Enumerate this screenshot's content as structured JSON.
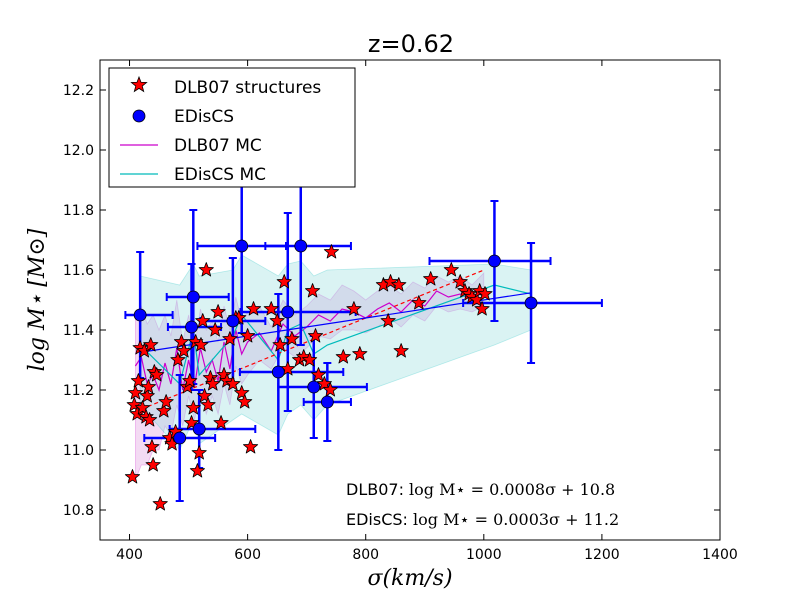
{
  "chart_data": {
    "type": "scatter",
    "title": "z=0.62",
    "xlabel": "σ(km/s)",
    "ylabel": "log M⋆   [M⊙]",
    "xlim": [
      350,
      1400
    ],
    "ylim": [
      10.7,
      12.3
    ],
    "xticks": [
      400,
      600,
      800,
      1000,
      1200,
      1400
    ],
    "yticks": [
      10.8,
      11.0,
      11.2,
      11.4,
      11.6,
      11.8,
      12.0,
      12.2
    ],
    "grid": false,
    "legend_position": "top-left",
    "legend": [
      {
        "label": "DLB07 structures",
        "marker": "star",
        "color": "#ff0000"
      },
      {
        "label": "EDisCS",
        "marker": "circle",
        "color": "#0000ff"
      },
      {
        "label": "DLB07 MC",
        "marker": "line",
        "color": "#cc00cc"
      },
      {
        "label": "EDisCS MC",
        "marker": "line",
        "color": "#00bbbb"
      }
    ],
    "series": [
      {
        "name": "DLB07 structures",
        "marker": "star",
        "color": "#ff0000",
        "points": [
          [
            405,
            10.91
          ],
          [
            408,
            11.15
          ],
          [
            410,
            11.19
          ],
          [
            413,
            11.12
          ],
          [
            415,
            11.23
          ],
          [
            418,
            11.34
          ],
          [
            422,
            11.14
          ],
          [
            425,
            11.33
          ],
          [
            428,
            11.11
          ],
          [
            430,
            11.18
          ],
          [
            432,
            11.21
          ],
          [
            434,
            11.1
          ],
          [
            436,
            11.35
          ],
          [
            438,
            11.01
          ],
          [
            440,
            10.95
          ],
          [
            442,
            11.26
          ],
          [
            446,
            11.25
          ],
          [
            452,
            10.82
          ],
          [
            458,
            11.13
          ],
          [
            462,
            11.16
          ],
          [
            468,
            11.04
          ],
          [
            472,
            11.02
          ],
          [
            478,
            11.06
          ],
          [
            482,
            11.3
          ],
          [
            488,
            11.36
          ],
          [
            492,
            11.33
          ],
          [
            498,
            11.21
          ],
          [
            502,
            11.23
          ],
          [
            505,
            11.09
          ],
          [
            508,
            11.14
          ],
          [
            512,
            11.36
          ],
          [
            515,
            10.93
          ],
          [
            518,
            10.99
          ],
          [
            521,
            11.35
          ],
          [
            524,
            11.43
          ],
          [
            527,
            11.18
          ],
          [
            530,
            11.6
          ],
          [
            533,
            11.15
          ],
          [
            537,
            11.24
          ],
          [
            541,
            11.22
          ],
          [
            545,
            11.4
          ],
          [
            550,
            11.46
          ],
          [
            555,
            11.09
          ],
          [
            560,
            11.25
          ],
          [
            565,
            11.23
          ],
          [
            570,
            11.37
          ],
          [
            575,
            11.22
          ],
          [
            580,
            11.44
          ],
          [
            585,
            11.44
          ],
          [
            590,
            11.19
          ],
          [
            595,
            11.16
          ],
          [
            600,
            11.38
          ],
          [
            605,
            11.01
          ],
          [
            610,
            11.47
          ],
          [
            640,
            11.47
          ],
          [
            650,
            11.43
          ],
          [
            655,
            11.35
          ],
          [
            662,
            11.56
          ],
          [
            668,
            11.27
          ],
          [
            675,
            11.37
          ],
          [
            688,
            11.3
          ],
          [
            695,
            11.31
          ],
          [
            705,
            11.3
          ],
          [
            710,
            11.53
          ],
          [
            715,
            11.38
          ],
          [
            720,
            11.25
          ],
          [
            730,
            11.22
          ],
          [
            740,
            11.2
          ],
          [
            742,
            11.66
          ],
          [
            762,
            11.31
          ],
          [
            780,
            11.47
          ],
          [
            790,
            11.32
          ],
          [
            830,
            11.55
          ],
          [
            838,
            11.43
          ],
          [
            842,
            11.56
          ],
          [
            856,
            11.55
          ],
          [
            860,
            11.33
          ],
          [
            890,
            11.49
          ],
          [
            910,
            11.57
          ],
          [
            945,
            11.6
          ],
          [
            960,
            11.56
          ],
          [
            968,
            11.53
          ],
          [
            975,
            11.52
          ],
          [
            980,
            11.51
          ],
          [
            988,
            11.5
          ],
          [
            993,
            11.53
          ],
          [
            997,
            11.47
          ],
          [
            1002,
            11.52
          ]
        ]
      },
      {
        "name": "EDisCS",
        "marker": "circle",
        "color": "#0000ff",
        "points": [
          {
            "x": 418,
            "y": 11.45,
            "xerr": [
              25,
              55
            ],
            "yerr": 0.21
          },
          {
            "x": 485,
            "y": 11.04,
            "xerr": [
              60,
              60
            ],
            "yerr": 0.21
          },
          {
            "x": 505,
            "y": 11.41,
            "xerr": [
              40,
              50
            ],
            "yerr": 0.21
          },
          {
            "x": 508,
            "y": 11.51,
            "xerr": [
              45,
              60
            ],
            "yerr": 0.29
          },
          {
            "x": 518,
            "y": 11.07,
            "xerr": [
              50,
              95
            ],
            "yerr": 0.13
          },
          {
            "x": 575,
            "y": 11.43,
            "xerr": [
              55,
              55
            ],
            "yerr": 0.21
          },
          {
            "x": 590,
            "y": 11.68,
            "xerr": [
              75,
              75
            ],
            "yerr": 0.29
          },
          {
            "x": 652,
            "y": 11.26,
            "xerr": [
              65,
              110
            ],
            "yerr": 0.26
          },
          {
            "x": 668,
            "y": 11.46,
            "xerr": [
              80,
              115
            ],
            "yerr": 0.33
          },
          {
            "x": 690,
            "y": 11.68,
            "xerr": [
              60,
              85
            ],
            "yerr": 0.33
          },
          {
            "x": 712,
            "y": 11.21,
            "xerr": [
              60,
              90
            ],
            "yerr": 0.17
          },
          {
            "x": 735,
            "y": 11.16,
            "xerr": [
              40,
              40
            ],
            "yerr": 0.13
          },
          {
            "x": 1018,
            "y": 11.63,
            "xerr": [
              110,
              95
            ],
            "yerr": 0.2
          },
          {
            "x": 1080,
            "y": 11.49,
            "xerr": [
              115,
              120
            ],
            "yerr": 0.2
          }
        ]
      },
      {
        "name": "DLB07 MC",
        "color": "#cc00cc",
        "x": [
          410,
          420,
          430,
          440,
          450,
          460,
          470,
          480,
          490,
          500,
          510,
          520,
          530,
          540,
          550,
          560,
          570,
          580,
          590,
          600,
          620,
          640,
          660,
          680,
          700,
          720,
          740,
          760,
          780,
          800,
          820,
          840,
          860,
          880,
          900,
          920,
          940,
          960,
          980,
          1000
        ],
        "y": [
          11.28,
          11.31,
          11.22,
          11.25,
          11.2,
          11.29,
          11.22,
          11.34,
          11.2,
          11.3,
          11.21,
          11.34,
          11.26,
          11.3,
          11.23,
          11.36,
          11.27,
          11.4,
          11.32,
          11.36,
          11.39,
          11.33,
          11.42,
          11.38,
          11.41,
          11.45,
          11.43,
          11.47,
          11.46,
          11.44,
          11.47,
          11.49,
          11.46,
          11.5,
          11.48,
          11.53,
          11.51,
          11.52,
          11.5,
          11.53
        ],
        "band_lower": [
          10.9,
          10.95,
          10.95,
          11.0,
          11.0,
          11.08,
          11.05,
          11.15,
          11.08,
          11.18,
          11.1,
          11.2,
          11.12,
          11.18,
          11.12,
          11.22,
          11.15,
          11.28,
          11.22,
          11.25,
          11.3,
          11.27,
          11.34,
          11.31,
          11.34,
          11.38,
          11.37,
          11.4,
          11.4,
          11.39,
          11.41,
          11.44,
          11.41,
          11.45,
          11.43,
          11.48,
          11.46,
          11.47,
          11.46,
          11.48
        ],
        "band_upper": [
          11.45,
          11.48,
          11.42,
          11.45,
          11.4,
          11.45,
          11.38,
          11.5,
          11.36,
          11.45,
          11.34,
          11.47,
          11.4,
          11.43,
          11.36,
          11.48,
          11.4,
          11.51,
          11.43,
          11.46,
          11.48,
          11.41,
          11.5,
          11.45,
          11.48,
          11.52,
          11.5,
          11.55,
          11.53,
          11.5,
          11.53,
          11.55,
          11.52,
          11.56,
          11.54,
          11.58,
          11.56,
          11.58,
          11.55,
          11.59
        ]
      },
      {
        "name": "EDisCS MC",
        "color": "#00bbbb",
        "x": [
          418,
          485,
          508,
          518,
          575,
          590,
          652,
          668,
          690,
          712,
          735,
          1018,
          1080
        ],
        "y": [
          11.35,
          11.22,
          11.4,
          11.25,
          11.38,
          11.45,
          11.3,
          11.4,
          11.42,
          11.32,
          11.35,
          11.55,
          11.52
        ],
        "band_lower": [
          11.15,
          11.0,
          11.1,
          11.02,
          11.1,
          11.12,
          11.05,
          11.12,
          11.15,
          11.1,
          11.15,
          11.35,
          11.4
        ],
        "band_upper": [
          11.58,
          11.55,
          11.62,
          11.58,
          11.6,
          11.65,
          11.58,
          11.62,
          11.63,
          11.58,
          11.6,
          11.62,
          11.6
        ]
      },
      {
        "name": "DLB07 fit",
        "color": "#ff0000",
        "style": "dashed",
        "slope": 0.0008,
        "intercept": 10.8,
        "x_range": [
          420,
          1000
        ]
      },
      {
        "name": "EDisCS fit",
        "color": "#0000ff",
        "style": "solid",
        "slope": 0.0003,
        "intercept": 11.2,
        "x_range": [
          418,
          1080
        ]
      }
    ],
    "annotations": [
      {
        "label": "DLB07: ",
        "formula": "log M⋆ = 0.0008σ + 10.8"
      },
      {
        "label": "EDisCS: ",
        "formula": "log M⋆ = 0.0003σ + 11.2"
      }
    ]
  }
}
